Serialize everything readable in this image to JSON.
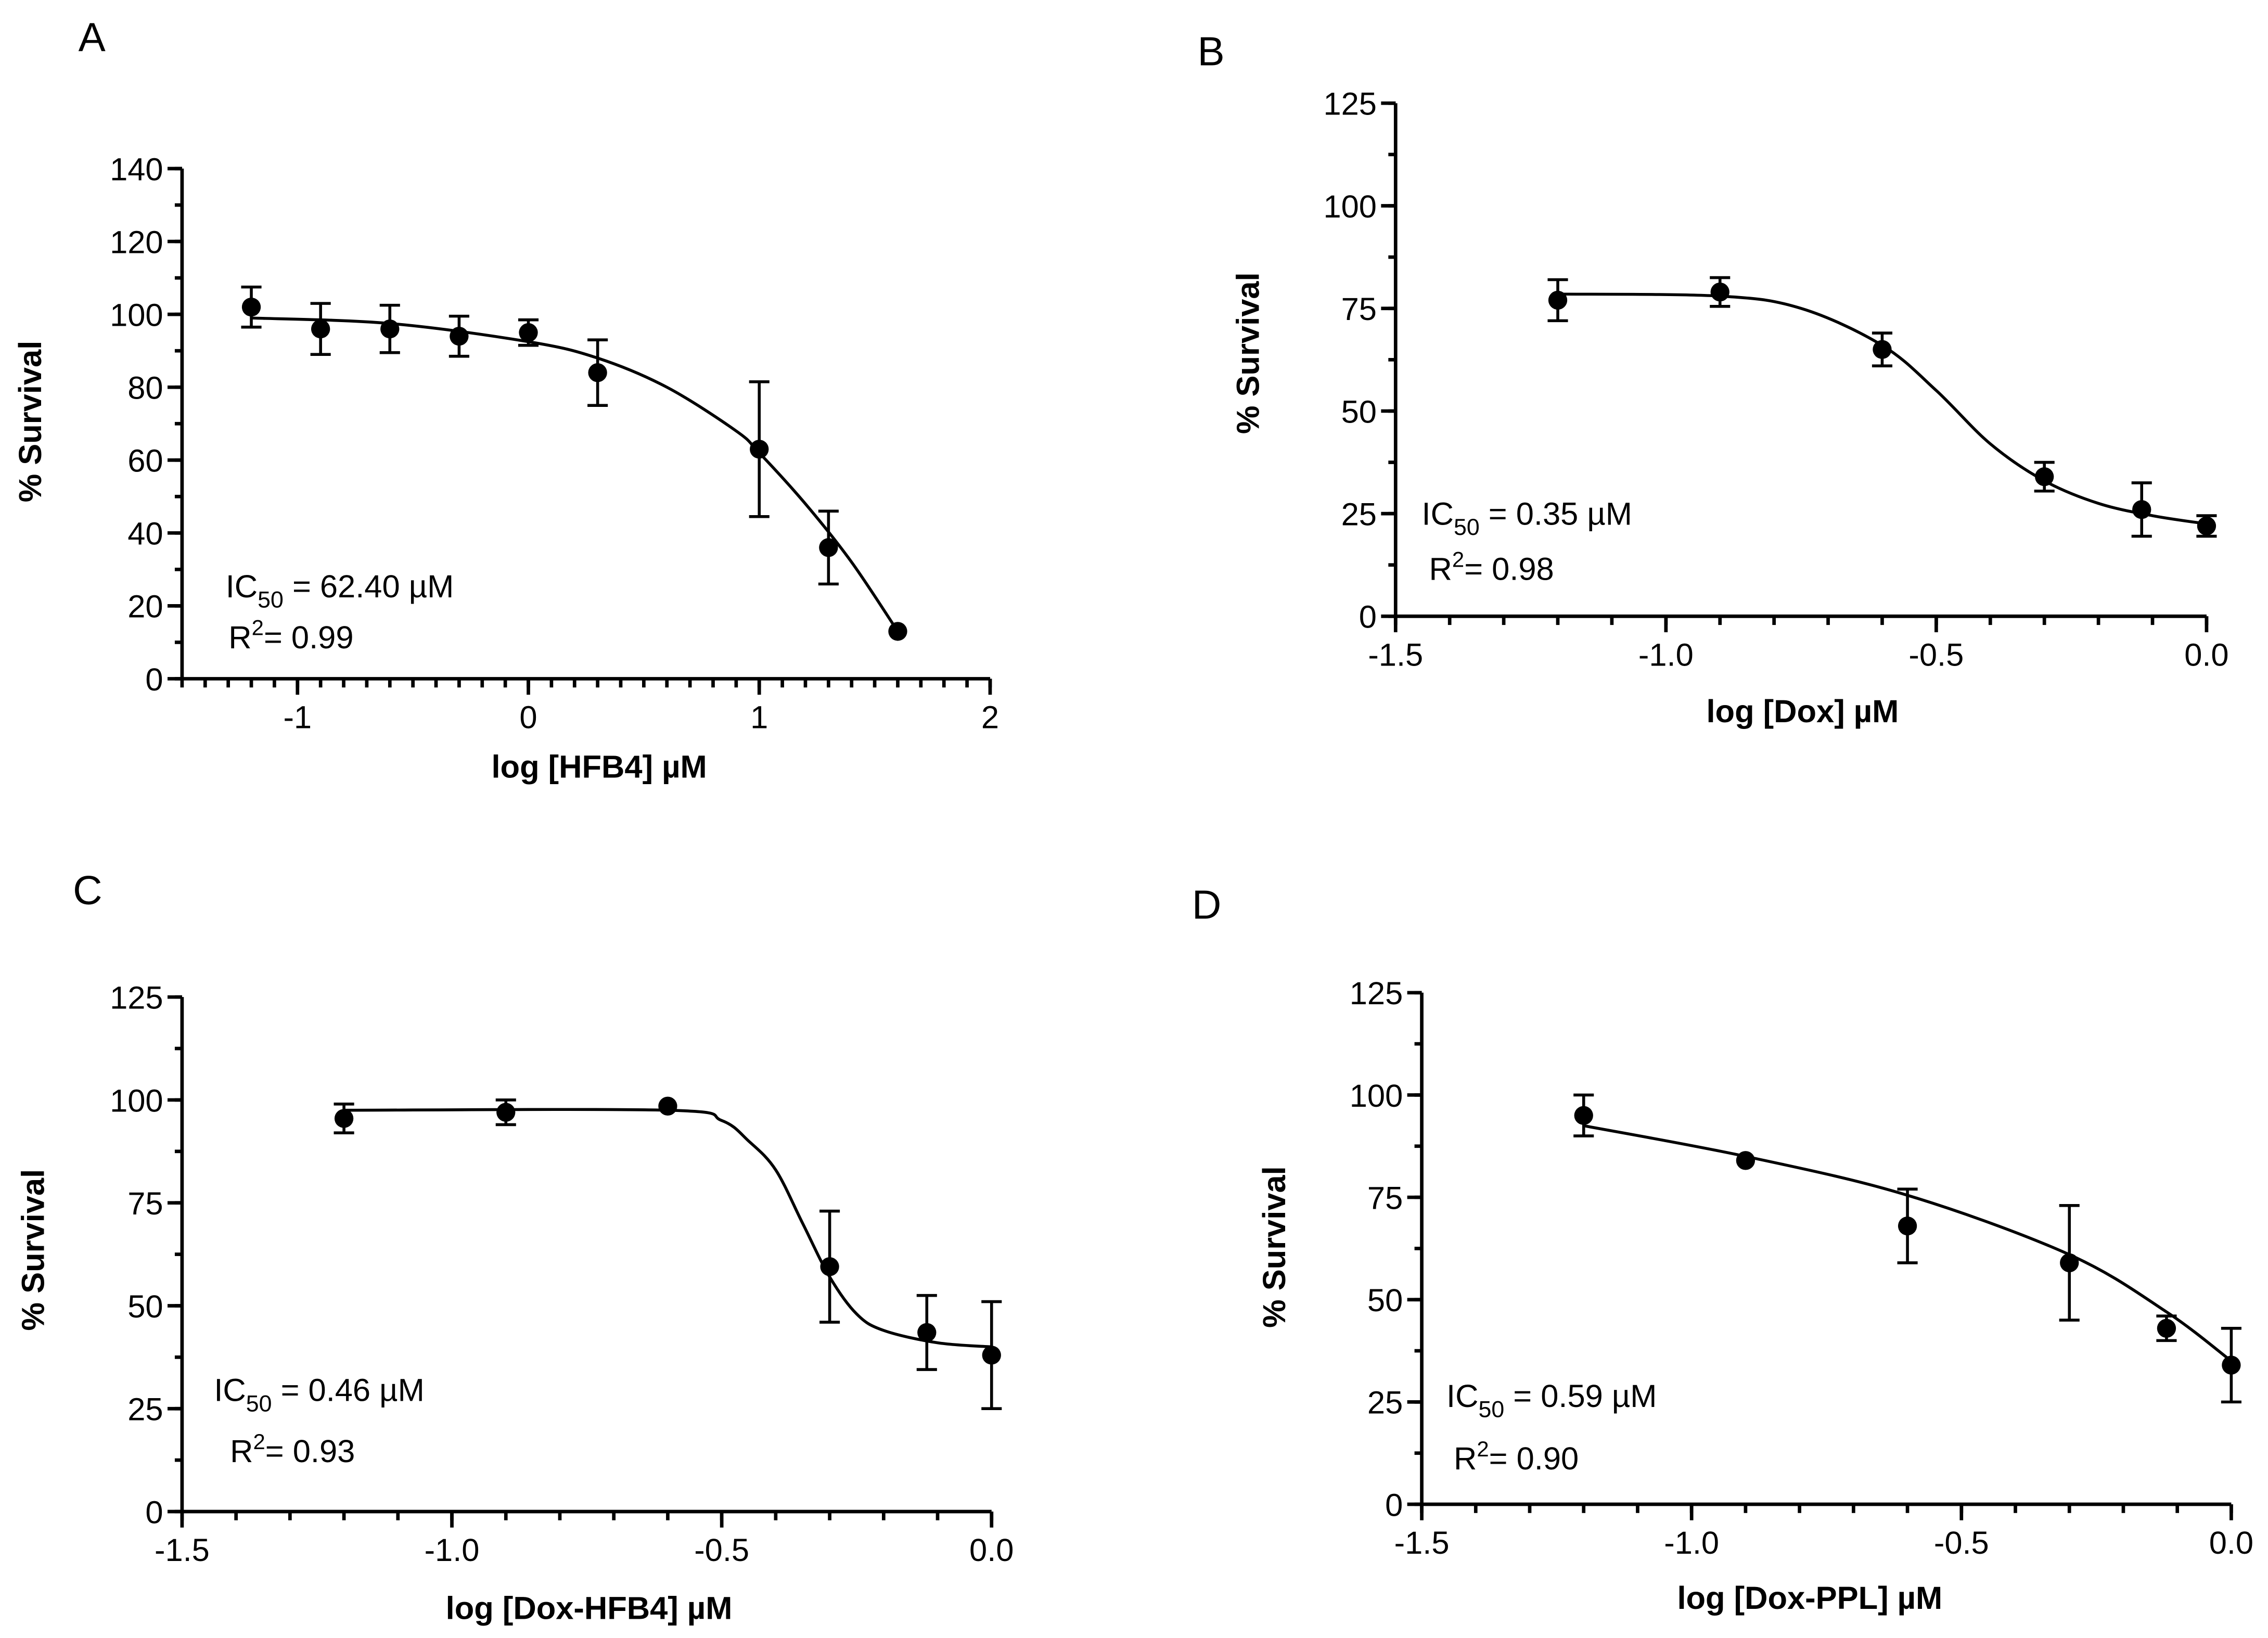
{
  "chart_data": [
    {
      "type": "scatter",
      "panel": "A",
      "xlabel": "log [HFB4] µM",
      "ylabel": "% Survival",
      "xlim": [
        -1.5,
        2
      ],
      "ylim": [
        0,
        140
      ],
      "xticks": [
        -1,
        0,
        1,
        2
      ],
      "xtick_labels": [
        "-1",
        "0",
        "1",
        "2"
      ],
      "yticks": [
        0,
        20,
        40,
        60,
        80,
        100,
        120,
        140
      ],
      "ytick_labels": [
        "0",
        "20",
        "40",
        "60",
        "80",
        "100",
        "120",
        "140"
      ],
      "x": [
        -1.2,
        -0.9,
        -0.6,
        -0.3,
        0,
        0.3,
        1.0,
        1.3,
        1.6
      ],
      "y": [
        102,
        96,
        96,
        94,
        95,
        84,
        63,
        36,
        13
      ],
      "error": [
        5.5,
        7,
        6.5,
        5.5,
        3.5,
        9,
        18.5,
        10,
        0
      ],
      "fit_curve": {
        "x": [
          -1.2,
          -0.6,
          0,
          0.3,
          0.6,
          0.9,
          1.0,
          1.2,
          1.4,
          1.6
        ],
        "y": [
          99,
          97.5,
          92.5,
          88,
          80,
          68,
          62,
          48,
          32,
          13
        ]
      },
      "annotation": {
        "ic50_prefix": "IC",
        "ic50_sub": "50",
        "ic50_value": " = 62.40 µM",
        "r2_prefix": "R",
        "r2_sup": "2",
        "r2_value": "= 0.99"
      }
    },
    {
      "type": "scatter",
      "panel": "B",
      "xlabel": "log [Dox] µM",
      "ylabel": "% Survival",
      "xlim": [
        -1.5,
        0
      ],
      "ylim": [
        0,
        125
      ],
      "xticks": [
        -1.5,
        -1.0,
        -0.5,
        0.0
      ],
      "xtick_labels": [
        "-1.5",
        "-1.0",
        "-0.5",
        "0.0"
      ],
      "yticks": [
        0,
        25,
        50,
        75,
        100,
        125
      ],
      "ytick_labels": [
        "0",
        "25",
        "50",
        "75",
        "100",
        "125"
      ],
      "x": [
        -1.2,
        -0.9,
        -0.6,
        -0.3,
        -0.12,
        0
      ],
      "y": [
        77,
        79,
        65,
        34,
        26,
        22
      ],
      "error": [
        5,
        3.5,
        4,
        3.5,
        6.5,
        2.5
      ],
      "fit_curve": {
        "x": [
          -1.2,
          -0.9,
          -0.75,
          -0.6,
          -0.5,
          -0.4,
          -0.3,
          -0.2,
          -0.1,
          0
        ],
        "y": [
          78.5,
          78,
          75,
          66,
          55,
          42,
          33,
          27.5,
          24.5,
          22.5
        ]
      },
      "annotation": {
        "ic50_prefix": "IC",
        "ic50_sub": "50",
        "ic50_value": " = 0.35 µM",
        "r2_prefix": "R",
        "r2_sup": "2",
        "r2_value": "= 0.98"
      }
    },
    {
      "type": "scatter",
      "panel": "C",
      "xlabel": "log [Dox-HFB4] µM",
      "ylabel": "% Survival",
      "xlim": [
        -1.5,
        0
      ],
      "ylim": [
        0,
        125
      ],
      "xticks": [
        -1.5,
        -1.0,
        -0.5,
        0.0
      ],
      "xtick_labels": [
        "-1.5",
        "-1.0",
        "-0.5",
        "0.0"
      ],
      "yticks": [
        0,
        25,
        50,
        75,
        100,
        125
      ],
      "ytick_labels": [
        "0",
        "25",
        "50",
        "75",
        "100",
        "125"
      ],
      "x": [
        -1.2,
        -0.9,
        -0.6,
        -0.3,
        -0.12,
        0
      ],
      "y": [
        95.5,
        97,
        98.5,
        59.5,
        43.5,
        38
      ],
      "error": [
        3.5,
        3,
        0,
        13.5,
        9,
        13
      ],
      "fit_curve": {
        "x": [
          -1.2,
          -0.6,
          -0.5,
          -0.45,
          -0.4,
          -0.35,
          -0.3,
          -0.25,
          -0.2,
          -0.1,
          0
        ],
        "y": [
          97.5,
          97.5,
          95,
          90,
          83,
          70,
          57,
          48,
          44,
          41,
          40
        ]
      },
      "annotation": {
        "ic50_prefix": "IC",
        "ic50_sub": "50",
        "ic50_value": " = 0.46 µM",
        "r2_prefix": "R",
        "r2_sup": "2",
        "r2_value": "= 0.93"
      }
    },
    {
      "type": "scatter",
      "panel": "D",
      "xlabel": "log [Dox-PPL] µM",
      "ylabel": "% Survival",
      "xlim": [
        -1.5,
        0
      ],
      "ylim": [
        0,
        125
      ],
      "xticks": [
        -1.5,
        -1.0,
        -0.5,
        0.0
      ],
      "xtick_labels": [
        "-1.5",
        "-1.0",
        "-0.5",
        "0.0"
      ],
      "yticks": [
        0,
        25,
        50,
        75,
        100,
        125
      ],
      "ytick_labels": [
        "0",
        "25",
        "50",
        "75",
        "100",
        "125"
      ],
      "x": [
        -1.2,
        -0.9,
        -0.6,
        -0.3,
        -0.12,
        0
      ],
      "y": [
        95,
        84,
        68,
        59,
        43,
        34
      ],
      "error": [
        5,
        0,
        9,
        14,
        3,
        9
      ],
      "fit_curve": {
        "x": [
          -1.2,
          -0.9,
          -0.6,
          -0.3,
          -0.12,
          0
        ],
        "y": [
          92.5,
          85,
          75.5,
          61,
          47,
          35
        ]
      },
      "annotation": {
        "ic50_prefix": "IC",
        "ic50_sub": "50",
        "ic50_value": " = 0.59 µM",
        "r2_prefix": "R",
        "r2_sup": "2",
        "r2_value": "= 0.90"
      }
    }
  ]
}
